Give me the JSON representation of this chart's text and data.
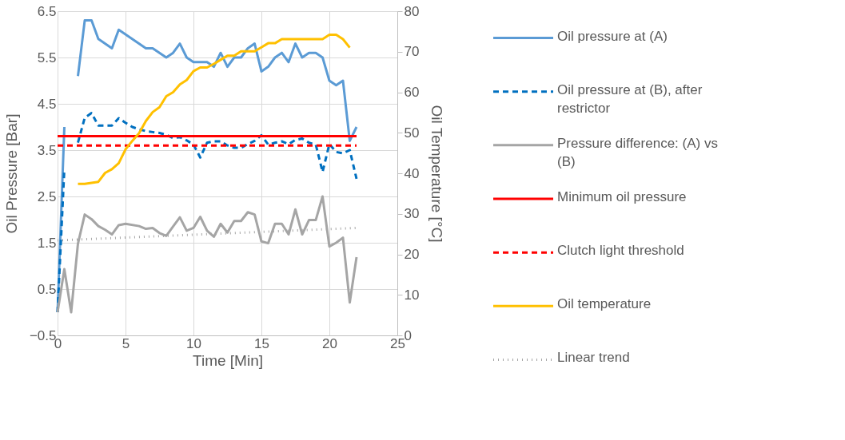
{
  "chart_data": {
    "type": "line",
    "xlabel": "Time [Min]",
    "ylabel": "Oil Pressure [Bar]",
    "y2label": "Oil Temperature [°C]",
    "xlim": [
      0,
      25
    ],
    "xticks": [
      0,
      5,
      10,
      15,
      20,
      25
    ],
    "ylim": [
      -0.5,
      6.5
    ],
    "yticks": [
      -0.5,
      0.5,
      1.5,
      2.5,
      3.5,
      4.5,
      5.5,
      6.5
    ],
    "y2lim": [
      0,
      80
    ],
    "y2ticks": [
      0,
      10,
      20,
      30,
      40,
      50,
      60,
      70,
      80
    ],
    "grid": true,
    "legend": "right",
    "marker": "none",
    "series": [
      {
        "name": "Oil pressure at (A)",
        "color": "#5b9bd5",
        "line_style": "solid",
        "x": [
          0,
          0.5,
          1,
          1.5,
          2,
          2.5,
          3,
          4,
          4.5,
          6.5,
          7,
          8,
          8.5,
          9,
          9.5,
          10,
          11,
          11.5,
          12,
          12.5,
          13,
          13.5,
          14,
          14.5,
          15,
          15.5,
          16,
          16.5,
          17,
          17.5,
          18,
          18.5,
          19,
          19.5,
          20,
          20.5,
          21,
          21.5,
          22
        ],
        "values": [
          0,
          4.0,
          null,
          5.1,
          6.3,
          6.3,
          5.9,
          5.7,
          6.1,
          5.7,
          5.7,
          5.5,
          5.6,
          5.8,
          5.5,
          5.4,
          5.4,
          5.3,
          5.6,
          5.3,
          5.5,
          5.5,
          5.7,
          5.8,
          5.2,
          5.3,
          5.5,
          5.6,
          5.4,
          5.8,
          5.5,
          5.6,
          5.6,
          5.5,
          5.0,
          4.9,
          5.0,
          3.7,
          4.0
        ]
      },
      {
        "name": "Oil pressure at (B), after restrictor",
        "color": "#0070c0",
        "line_style": "dashed",
        "x": [
          0,
          0.5,
          1,
          1.5,
          2,
          2.5,
          3,
          4,
          4.5,
          5,
          5.5,
          6,
          6.5,
          7,
          7.5,
          8,
          8.5,
          9,
          9.5,
          10,
          10.5,
          11,
          11.5,
          12,
          12.5,
          13,
          13.5,
          14,
          14.5,
          15,
          15.5,
          16,
          16.5,
          17,
          17.5,
          18,
          18.5,
          19,
          19.5,
          20,
          20.5,
          21,
          21.5,
          22
        ],
        "values": [
          0,
          3.1,
          null,
          3.66,
          4.2,
          4.3,
          4.03,
          4.03,
          4.19,
          4.09,
          4.0,
          3.95,
          3.91,
          3.89,
          3.87,
          3.83,
          3.76,
          3.78,
          3.71,
          3.62,
          3.34,
          3.66,
          3.69,
          3.69,
          3.6,
          3.55,
          3.55,
          3.63,
          3.7,
          3.82,
          3.62,
          3.66,
          3.69,
          3.63,
          3.72,
          3.75,
          3.66,
          3.62,
          3.03,
          3.63,
          3.46,
          3.43,
          3.5,
          2.88
        ]
      },
      {
        "name": "Pressure difference: (A) vs (B)",
        "color": "#a5a5a5",
        "line_style": "solid",
        "x": [
          0,
          0.5,
          1,
          1.5,
          2,
          2.5,
          3,
          3.5,
          4,
          4.5,
          5,
          6,
          6.5,
          7,
          7.5,
          8,
          8.5,
          9,
          9.5,
          10,
          10.5,
          11,
          11.5,
          12,
          12.5,
          13,
          13.5,
          14,
          14.5,
          15,
          15.5,
          16,
          16.5,
          17,
          17.5,
          18,
          18.5,
          19,
          19.5,
          20,
          20.5,
          21,
          21.5,
          22
        ],
        "values": [
          0,
          0.93,
          0,
          1.48,
          2.11,
          2.01,
          1.86,
          1.78,
          1.68,
          1.88,
          1.91,
          1.86,
          1.8,
          1.82,
          1.71,
          1.65,
          1.85,
          2.05,
          1.76,
          1.82,
          2.06,
          1.76,
          1.63,
          1.91,
          1.72,
          1.97,
          1.97,
          2.16,
          2.11,
          1.53,
          1.49,
          1.91,
          1.91,
          1.68,
          2.22,
          1.68,
          1.99,
          1.99,
          2.5,
          1.42,
          1.5,
          1.61,
          0.21,
          1.19
        ]
      },
      {
        "name": "Minimum oil pressure",
        "color": "#ff0000",
        "line_style": "solid",
        "x": [
          0,
          22
        ],
        "values": [
          3.8,
          3.8
        ]
      },
      {
        "name": "Clutch light threshold",
        "color": "#ff0000",
        "line_style": "dashed",
        "x": [
          0,
          22
        ],
        "values": [
          3.6,
          3.6
        ]
      },
      {
        "name": "Oil temperature",
        "color": "#ffc000",
        "line_style": "solid",
        "axis": "y2",
        "x": [
          1.5,
          2,
          3,
          3.5,
          4,
          4.5,
          5,
          5.5,
          6,
          6.5,
          7,
          7.5,
          8,
          8.5,
          9,
          9.5,
          10,
          10.5,
          11,
          11.5,
          12,
          12.5,
          13,
          13.5,
          14.5,
          15,
          15.5,
          16,
          16.5,
          19.5,
          20,
          20.5,
          21,
          21.5
        ],
        "values": [
          37.4,
          37.4,
          37.9,
          40.1,
          41.0,
          42.5,
          45.9,
          48.0,
          49.9,
          52.9,
          55.1,
          56.3,
          59.0,
          60.0,
          61.9,
          63.0,
          65.2,
          66.1,
          66.1,
          67.0,
          68.0,
          69.0,
          69.0,
          70.1,
          70.1,
          71.1,
          72.1,
          72.1,
          73.1,
          73.1,
          74.2,
          74.2,
          73.1,
          71.0
        ]
      },
      {
        "name": "Linear trend",
        "color": "#a5a5a5",
        "line_style": "dotted",
        "x": [
          0,
          22
        ],
        "values": [
          1.55,
          1.82
        ]
      }
    ]
  }
}
